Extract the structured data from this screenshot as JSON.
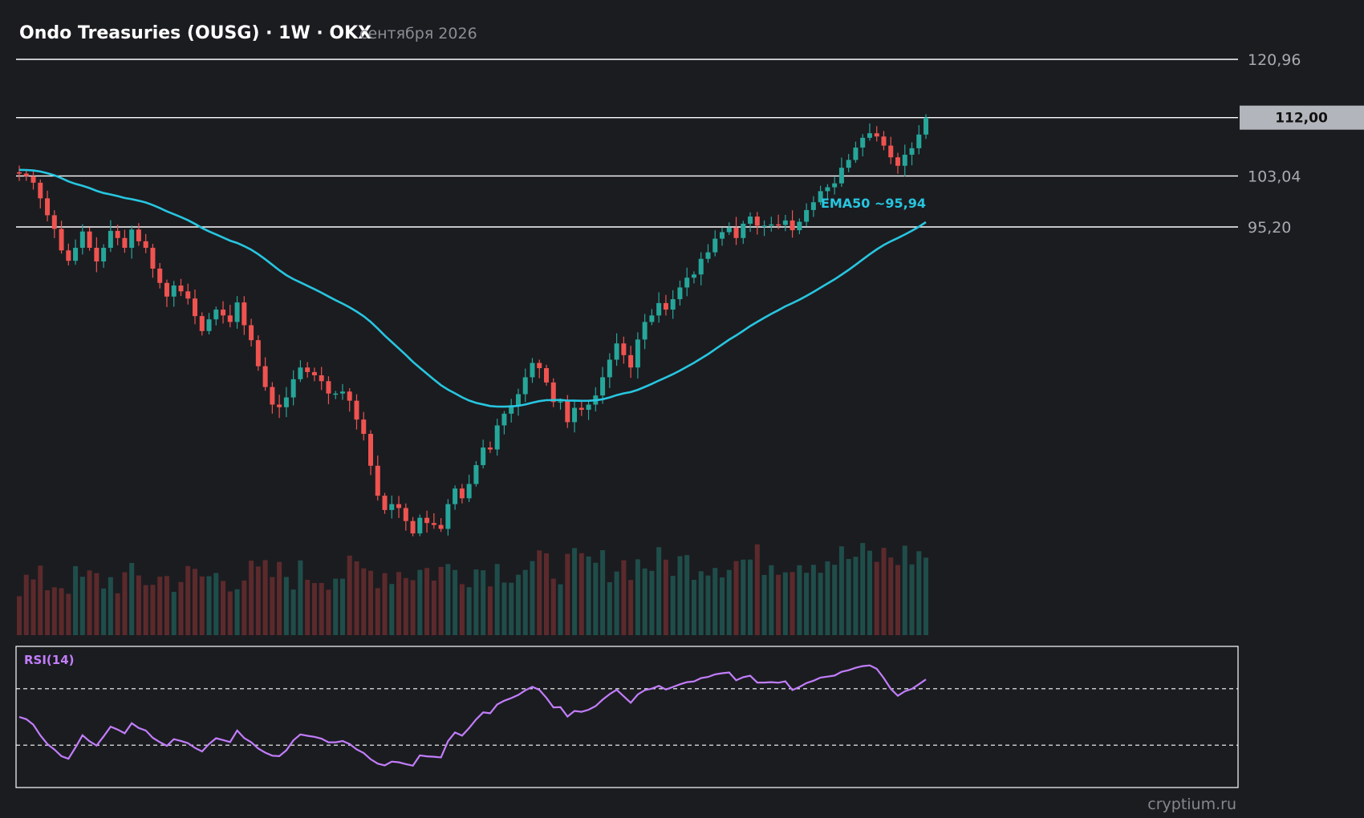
{
  "header": {
    "title": "Ondo Treasuries (OUSG) · 1W · OKX",
    "date": "сентября 2026"
  },
  "watermark": "cryptium.ru",
  "colors": {
    "background": "#1b1c20",
    "up": "#26a69a",
    "down": "#ef5350",
    "up_volume": "#1f4d4a",
    "down_volume": "#5c2a2c",
    "ema": "#27c6e0",
    "rsi": "#c27dfc",
    "level_line": "#ffffff",
    "current_price_tag": "#b2b5bb"
  },
  "chart_data": {
    "type": "candlestick",
    "title": "Ondo Treasuries (OUSG) · 1W · OKX",
    "interval": "1W",
    "exchange": "OKX",
    "y_axis_ticks": [
      "120,96",
      "112,00",
      "103,04",
      "95,20"
    ],
    "y_range": [
      40.0,
      125.0
    ],
    "levels": [
      {
        "value": 120.96,
        "label": "120,96",
        "highlight": false
      },
      {
        "value": 112.0,
        "label": "112,00",
        "highlight": true
      },
      {
        "value": 103.04,
        "label": "103,04",
        "highlight": false
      },
      {
        "value": 95.2,
        "label": "95,20",
        "highlight": false
      }
    ],
    "current_price": 112.0,
    "ema": {
      "name": "EMA50",
      "label": "EMA50 ~95,94",
      "last_value": 95.94
    },
    "candles_close": [
      103.4,
      103.0,
      102.0,
      99.6,
      97.0,
      94.9,
      91.6,
      90.0,
      92.0,
      94.5,
      92.0,
      89.9,
      92.0,
      94.6,
      93.5,
      92.0,
      94.8,
      93.0,
      92.0,
      88.8,
      86.6,
      84.5,
      86.2,
      85.3,
      84.2,
      81.5,
      79.2,
      81.0,
      82.5,
      81.6,
      80.6,
      83.6,
      80.1,
      77.8,
      73.8,
      70.6,
      67.9,
      67.5,
      69.0,
      71.8,
      73.6,
      72.9,
      72.4,
      71.5,
      69.6,
      69.6,
      69.9,
      68.5,
      65.6,
      63.4,
      58.5,
      53.9,
      51.7,
      52.6,
      52.0,
      50.0,
      48.1,
      50.5,
      49.7,
      49.4,
      48.8,
      52.6,
      55.0,
      53.5,
      55.7,
      58.6,
      61.3,
      61.0,
      64.7,
      66.5,
      67.8,
      69.5,
      72.1,
      74.3,
      73.5,
      71.3,
      68.3,
      68.4,
      65.2,
      67.4,
      67.1,
      67.9,
      69.3,
      72.1,
      74.8,
      77.3,
      75.5,
      73.6,
      77.9,
      80.6,
      81.6,
      83.5,
      82.5,
      84.1,
      85.9,
      87.4,
      87.9,
      90.3,
      91.3,
      93.4,
      94.4,
      95.1,
      93.5,
      95.7,
      96.8,
      95.4,
      95.4,
      95.6,
      95.5,
      96.2,
      94.7,
      96.0,
      97.8,
      99.0,
      100.7,
      101.3,
      101.9,
      104.3,
      105.5,
      107.4,
      108.9,
      109.6,
      109.1,
      107.7,
      105.9,
      104.6,
      106.3,
      107.3,
      109.4,
      112.0
    ],
    "rsi": {
      "name": "RSI(14)",
      "upper": 70,
      "lower": 30,
      "range": [
        0,
        100
      ]
    }
  }
}
